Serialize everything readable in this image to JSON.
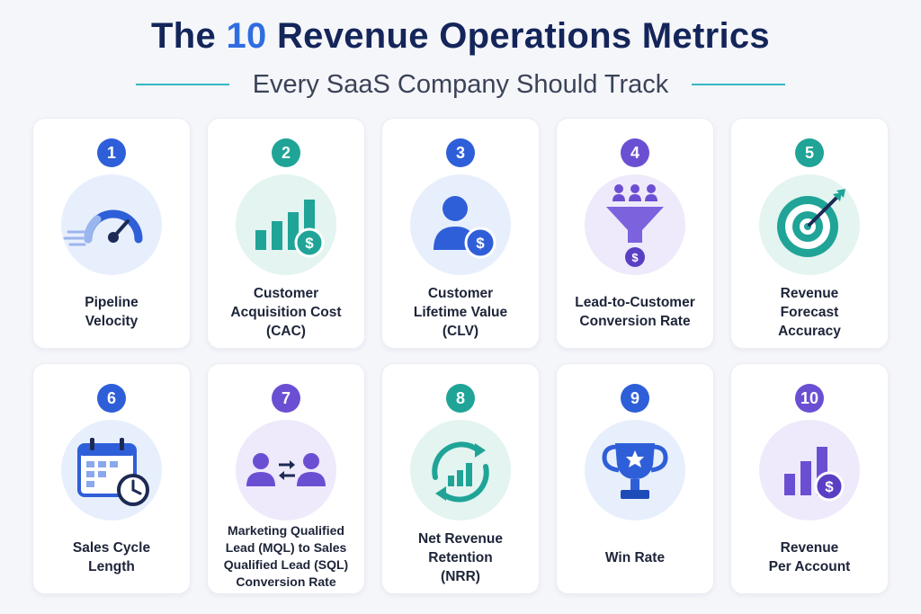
{
  "header": {
    "title_pre": "The ",
    "title_num": "10",
    "title_post": " Revenue Operations Metrics",
    "subtitle": "Every SaaS Company Should Track"
  },
  "metrics": [
    {
      "number": "1",
      "label": "Pipeline\nVelocity",
      "icon": "speedometer-icon",
      "badge_color": "#2f5fd8",
      "bg_color": "#e8effc"
    },
    {
      "number": "2",
      "label": "Customer\nAcquisition Cost\n(CAC)",
      "icon": "bar-chart-dollar-icon",
      "badge_color": "#1fa497",
      "bg_color": "#e3f4f1"
    },
    {
      "number": "3",
      "label": "Customer\nLifetime Value\n(CLV)",
      "icon": "person-dollar-icon",
      "badge_color": "#2f5fd8",
      "bg_color": "#e8effc"
    },
    {
      "number": "4",
      "label": "Lead-to-Customer\nConversion Rate",
      "icon": "funnel-icon",
      "badge_color": "#6b4fd3",
      "bg_color": "#eeeafb"
    },
    {
      "number": "5",
      "label": "Revenue\nForecast\nAccuracy",
      "icon": "target-icon",
      "badge_color": "#1fa497",
      "bg_color": "#e3f4f1"
    },
    {
      "number": "6",
      "label": "Sales Cycle\nLength",
      "icon": "calendar-clock-icon",
      "badge_color": "#2f5fd8",
      "bg_color": "#e8effc"
    },
    {
      "number": "7",
      "label": "Marketing Qualified\nLead (MQL) to Sales\nQualified Lead (SQL)\nConversion Rate",
      "icon": "people-exchange-icon",
      "badge_color": "#6b4fd3",
      "bg_color": "#eeeafb"
    },
    {
      "number": "8",
      "label": "Net Revenue\nRetention\n(NRR)",
      "icon": "cycle-chart-icon",
      "badge_color": "#1fa497",
      "bg_color": "#e3f4f1"
    },
    {
      "number": "9",
      "label": "Win Rate",
      "icon": "trophy-icon",
      "badge_color": "#2f5fd8",
      "bg_color": "#e8effc"
    },
    {
      "number": "10",
      "label": "Revenue\nPer Account",
      "icon": "bar-chart-dollar-purple-icon",
      "badge_color": "#6b4fd3",
      "bg_color": "#eeeafb"
    }
  ]
}
